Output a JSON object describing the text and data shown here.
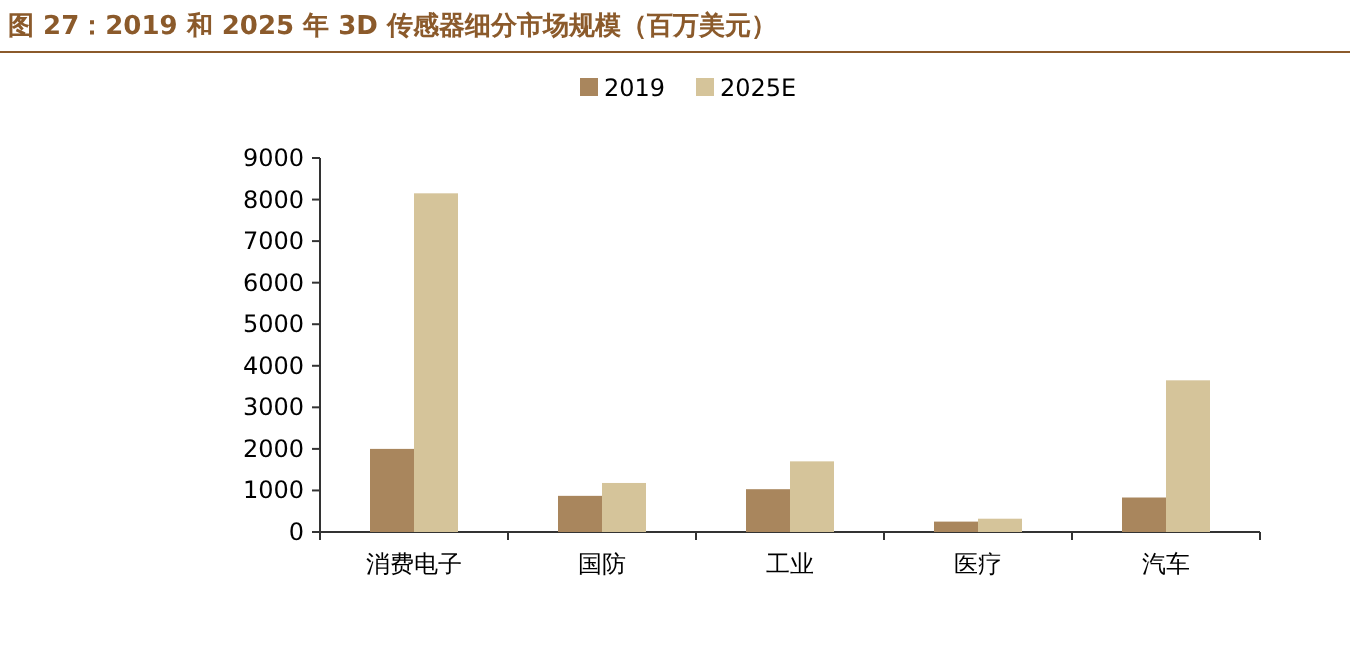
{
  "chart_data": {
    "type": "bar",
    "title": "图 27：2019 和 2025 年 3D 传感器细分市场规模（百万美元）",
    "categories": [
      "消费电子",
      "国防",
      "工业",
      "医疗",
      "汽车"
    ],
    "series": [
      {
        "name": "2019",
        "color": "#a9865d",
        "values": [
          2000,
          870,
          1030,
          250,
          830
        ]
      },
      {
        "name": "2025E",
        "color": "#d5c49a",
        "values": [
          8150,
          1180,
          1700,
          320,
          3650
        ]
      }
    ],
    "ylim": [
      0,
      9000
    ],
    "yticks": [
      0,
      1000,
      2000,
      3000,
      4000,
      5000,
      6000,
      7000,
      8000,
      9000
    ],
    "legend": "top",
    "grid": false
  }
}
